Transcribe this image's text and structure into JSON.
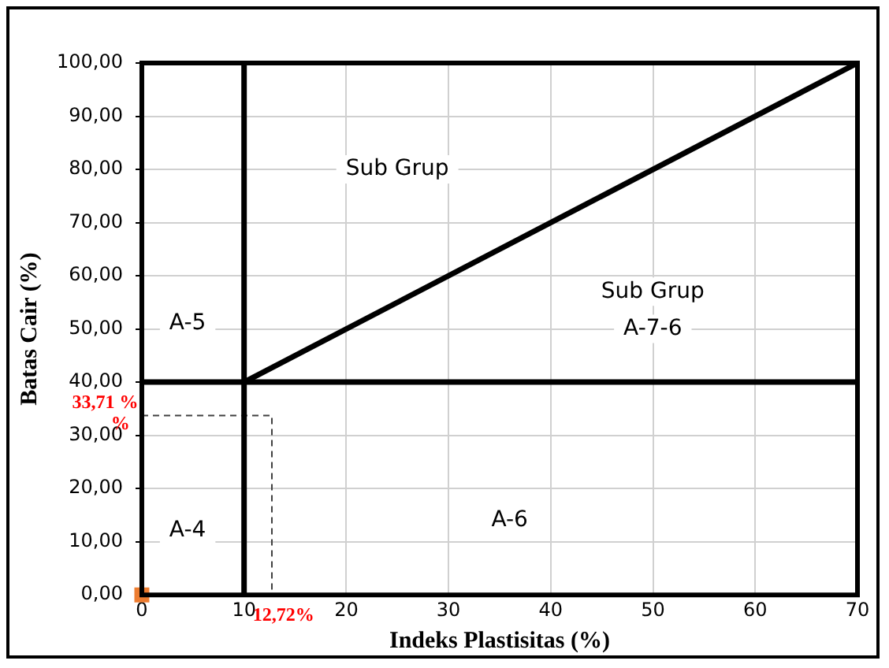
{
  "chart_data": {
    "type": "line",
    "xlabel": "Indeks Plastisitas (%)",
    "ylabel": "Batas Cair (%)",
    "xlim": [
      0,
      70
    ],
    "ylim": [
      0,
      100
    ],
    "xticks": [
      0,
      10,
      20,
      30,
      40,
      50,
      60,
      70
    ],
    "yticks": [
      {
        "value": 0,
        "label": "0,00"
      },
      {
        "value": 10,
        "label": "10,00"
      },
      {
        "value": 20,
        "label": "20,00"
      },
      {
        "value": 30,
        "label": "30,00"
      },
      {
        "value": 40,
        "label": "40,00"
      },
      {
        "value": 50,
        "label": "50,00"
      },
      {
        "value": 60,
        "label": "60,00"
      },
      {
        "value": 70,
        "label": "70,00"
      },
      {
        "value": 80,
        "label": "80,00"
      },
      {
        "value": 90,
        "label": "90,00"
      },
      {
        "value": 100,
        "label": "100,00"
      }
    ],
    "grid": true,
    "legend": false,
    "marker": "none",
    "series": [
      {
        "color": "#000000",
        "x": [
          10,
          10
        ],
        "values": [
          0,
          100
        ]
      },
      {
        "color": "#000000",
        "x": [
          0,
          70
        ],
        "values": [
          40,
          40
        ]
      },
      {
        "color": "#000000",
        "x": [
          10,
          70
        ],
        "values": [
          40,
          100
        ]
      },
      {
        "color": "#404040",
        "line_style": "dashed",
        "x": [
          0,
          12.72,
          12.72
        ],
        "values": [
          33.71,
          33.71,
          0
        ]
      },
      {
        "type": "scatter",
        "color": "#ed7d31",
        "marker": "square",
        "x": [
          0
        ],
        "values": [
          0
        ]
      }
    ],
    "annotations": [
      "Sub Grup",
      "Sub Grup",
      "A-7-6",
      "A-5",
      "A-4",
      "A-6",
      "33,71 %",
      "%",
      "12,72%"
    ]
  }
}
